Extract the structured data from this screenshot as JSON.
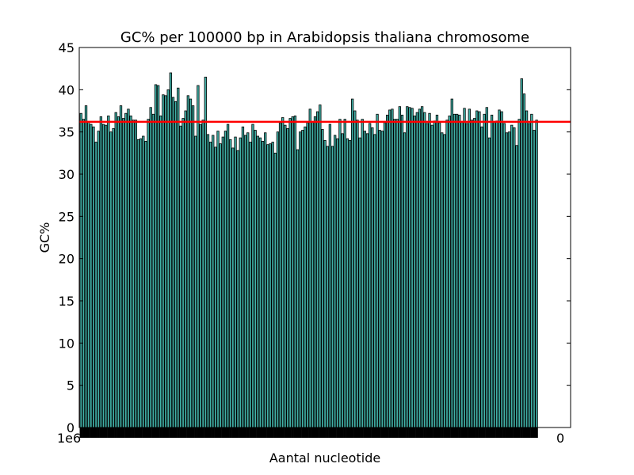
{
  "chart_data": {
    "type": "bar",
    "title": "GC% per 100000 bp in Arabidopsis thaliana chromosome",
    "xlabel": "Aantal nucleotide",
    "ylabel": "GC%",
    "ylim": [
      0,
      45
    ],
    "yticks": [
      "0",
      "5",
      "10",
      "15",
      "20",
      "25",
      "30",
      "35",
      "40",
      "45"
    ],
    "xtick_left_fragment": "1e6",
    "xtick_right_fragment": "0",
    "colors": {
      "bar_fill": "#40b0a6",
      "bar_edge": "#000000",
      "mean_line": "#ff0000"
    },
    "mean_line": 36.2,
    "values": [
      37.2,
      36.5,
      38.1,
      36.2,
      35.9,
      35.6,
      33.8,
      35.1,
      36.8,
      35.9,
      35.8,
      36.9,
      35.0,
      35.4,
      37.3,
      36.8,
      38.1,
      36.6,
      37.2,
      37.7,
      36.9,
      36.4,
      36.4,
      34.1,
      34.2,
      34.5,
      33.9,
      36.5,
      37.9,
      37.1,
      40.6,
      40.5,
      36.9,
      39.4,
      39.3,
      40.0,
      42.0,
      39.1,
      38.6,
      40.2,
      35.7,
      36.6,
      37.5,
      39.3,
      38.9,
      38.1,
      34.5,
      40.5,
      35.9,
      36.4,
      41.5,
      34.7,
      33.8,
      34.6,
      33.2,
      35.1,
      33.6,
      34.4,
      35.1,
      35.9,
      34.1,
      33.1,
      34.4,
      32.8,
      34.3,
      35.6,
      34.6,
      34.9,
      33.8,
      35.9,
      35.2,
      34.5,
      34.3,
      33.9,
      34.9,
      33.5,
      33.6,
      33.8,
      32.5,
      35.0,
      36.1,
      36.7,
      35.8,
      35.4,
      36.6,
      36.8,
      36.9,
      32.9,
      35.0,
      35.2,
      35.6,
      36.1,
      37.7,
      36.2,
      36.8,
      37.4,
      38.2,
      35.3,
      34.0,
      33.3,
      35.9,
      33.3,
      34.6,
      34.2,
      36.5,
      34.8,
      36.5,
      34.2,
      34.0,
      38.9,
      37.5,
      36.4,
      34.3,
      36.5,
      35.1,
      34.8,
      36.0,
      35.5,
      34.7,
      37.1,
      35.2,
      35.1,
      36.1,
      37.0,
      37.6,
      37.7,
      36.5,
      36.5,
      38.0,
      37.0,
      34.9,
      38.0,
      37.9,
      37.8,
      36.9,
      37.3,
      37.7,
      38.0,
      37.3,
      36.0,
      37.2,
      35.8,
      36.3,
      37.0,
      36.1,
      34.9,
      34.7,
      36.4,
      36.9,
      38.9,
      37.1,
      37.1,
      37.0,
      36.2,
      37.8,
      36.0,
      37.7,
      36.4,
      36.6,
      37.5,
      37.4,
      35.6,
      37.1,
      37.9,
      34.3,
      37.0,
      36.2,
      36.3,
      37.6,
      37.4,
      36.0,
      34.9,
      35.0,
      35.8,
      35.5,
      33.4,
      36.5,
      41.3,
      39.5,
      37.5,
      36.0,
      37.1,
      35.2,
      36.4
    ]
  }
}
